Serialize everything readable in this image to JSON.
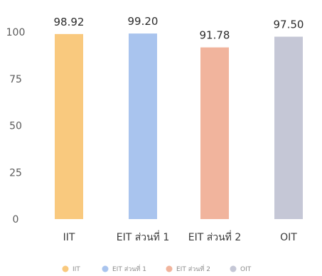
{
  "chart_data": {
    "type": "bar",
    "categories": [
      "IIT",
      "EIT ส่วนที่ 1",
      "EIT ส่วนที่ 2",
      "OIT"
    ],
    "values": [
      98.92,
      99.2,
      91.78,
      97.5
    ],
    "value_labels": [
      "98.92",
      "99.20",
      "91.78",
      "97.50"
    ],
    "ylim": [
      0,
      100
    ],
    "yticks": [
      0,
      25,
      50,
      75,
      100
    ],
    "colors": [
      "#F9C97E",
      "#A9C4EE",
      "#F1B49D",
      "#C5C7D6"
    ],
    "legend": {
      "position": "bottom",
      "entries": [
        "IIT",
        "EIT ส่วนที่ 1",
        "EIT ส่วนที่ 2",
        "OIT"
      ]
    },
    "grid": false
  }
}
